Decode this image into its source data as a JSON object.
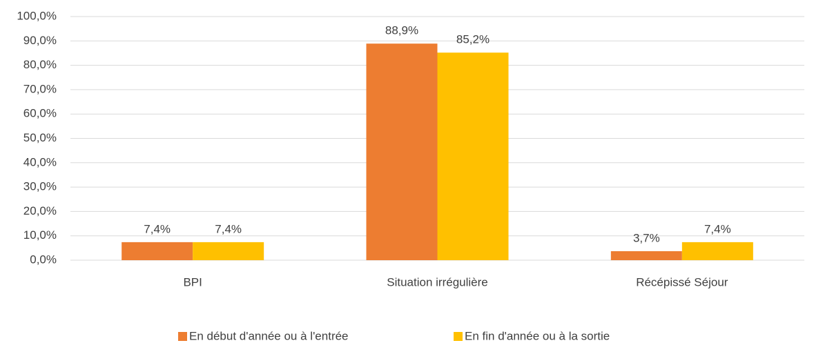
{
  "chart_data": {
    "type": "bar",
    "categories": [
      "BPI",
      "Situation irrégulière",
      "Récépissé Séjour"
    ],
    "series": [
      {
        "name": "En début d'année ou à l'entrée",
        "color": "#ED7D31",
        "values": [
          7.4,
          88.9,
          3.7
        ],
        "value_labels": [
          "7,4%",
          "88,9%",
          "3,7%"
        ]
      },
      {
        "name": "En fin d'année ou à la sortie",
        "color": "#FFC000",
        "values": [
          7.4,
          85.2,
          7.4
        ],
        "value_labels": [
          "7,4%",
          "85,2%",
          "7,4%"
        ]
      }
    ],
    "ylim": [
      0,
      100
    ],
    "yticks": [
      {
        "value": 0,
        "label": "0,0%"
      },
      {
        "value": 10,
        "label": "10,0%"
      },
      {
        "value": 20,
        "label": "20,0%"
      },
      {
        "value": 30,
        "label": "30,0%"
      },
      {
        "value": 40,
        "label": "40,0%"
      },
      {
        "value": 50,
        "label": "50,0%"
      },
      {
        "value": 60,
        "label": "60,0%"
      },
      {
        "value": 70,
        "label": "70,0%"
      },
      {
        "value": 80,
        "label": "80,0%"
      },
      {
        "value": 90,
        "label": "90,0%"
      },
      {
        "value": 100,
        "label": "100,0%"
      }
    ],
    "grid": true,
    "legend": "bottom"
  }
}
